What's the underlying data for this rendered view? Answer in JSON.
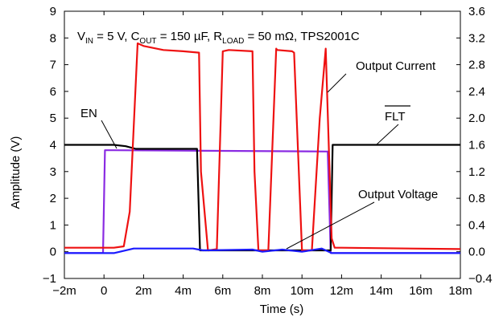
{
  "chart_data": {
    "type": "line",
    "title": "",
    "annotation": {
      "vin": "V",
      "vin_sub": "IN",
      "vin_value": " = 5 V,  C",
      "cout_sub": "OUT",
      "cout_value": " = 150 µF,  R",
      "rload_sub": "LOAD",
      "rload_value": " = 50 mΩ,  TPS2001C"
    },
    "xlabel": "Time (s)",
    "ylabel": "Amplitude (V)",
    "ylabel_right": "",
    "x_unit_scale": 0.001,
    "xlim": [
      -2,
      18
    ],
    "ylim_left": [
      -1,
      9
    ],
    "ylim_right": [
      -0.4,
      3.6
    ],
    "x_ticks": [
      "−2m",
      "0",
      "2m",
      "4m",
      "6m",
      "8m",
      "10m",
      "12m",
      "14m",
      "16m",
      "18m"
    ],
    "y_ticks_left": [
      "−1",
      "0",
      "1",
      "2",
      "3",
      "4",
      "5",
      "6",
      "7",
      "8",
      "9"
    ],
    "y_ticks_right": [
      "−0.4",
      "0.0",
      "0.4",
      "0.8",
      "1.2",
      "1.6",
      "2.0",
      "2.4",
      "2.8",
      "3.2",
      "3.6"
    ],
    "grid": false,
    "labels": {
      "en": "EN",
      "flt": "FLT",
      "output_current": "Output Current",
      "output_voltage": "Output Voltage"
    },
    "colors": {
      "en": "#8a2be2",
      "flt": "#000000",
      "output_current": "#ee1111",
      "output_voltage": "#1a1aff"
    },
    "series": [
      {
        "key": "en",
        "color": "#8a2be2",
        "x": [
          -2,
          -0.05,
          0.05,
          0.5,
          11.3,
          11.45,
          18
        ],
        "y": [
          -0.05,
          -0.05,
          3.8,
          3.8,
          3.75,
          -0.05,
          -0.05
        ]
      },
      {
        "key": "flt",
        "color": "#000000",
        "x": [
          -2,
          0.5,
          1.1,
          1.6,
          4.7,
          4.85,
          7.8,
          10.9,
          11.3,
          11.45,
          11.55,
          18
        ],
        "y": [
          4.0,
          4.0,
          3.95,
          3.85,
          3.85,
          0.05,
          0.05,
          0.05,
          0.05,
          0.05,
          4.0,
          4.0
        ]
      },
      {
        "key": "output_current",
        "color": "#ee1111",
        "x": [
          -2,
          0.5,
          1.0,
          1.3,
          1.7,
          2.0,
          3.0,
          4.0,
          4.8,
          4.9,
          5.25,
          5.3,
          5.7,
          6.0,
          6.3,
          7.5,
          7.6,
          7.8,
          8.3,
          8.7,
          8.75,
          9.5,
          9.6,
          10.0,
          10.5,
          10.9,
          11.2,
          11.5,
          11.65,
          12.0,
          18
        ],
        "y": [
          0.15,
          0.15,
          0.2,
          1.5,
          7.8,
          7.7,
          7.55,
          7.5,
          7.45,
          3.0,
          0.05,
          0.05,
          0.1,
          7.5,
          7.55,
          7.5,
          3.0,
          0.05,
          0.05,
          7.6,
          7.55,
          7.5,
          7.45,
          0.05,
          0.05,
          5.0,
          7.6,
          0.5,
          0.15,
          0.15,
          0.1
        ]
      },
      {
        "key": "output_voltage",
        "color": "#1a1aff",
        "x": [
          -2,
          0.5,
          1.5,
          4.5,
          5.0,
          7.5,
          8.0,
          9.0,
          10.0,
          11.0,
          11.5,
          18
        ],
        "y": [
          -0.05,
          -0.05,
          0.12,
          0.12,
          0.05,
          0.08,
          0.0,
          0.08,
          0.0,
          0.12,
          -0.05,
          -0.05
        ]
      }
    ]
  }
}
